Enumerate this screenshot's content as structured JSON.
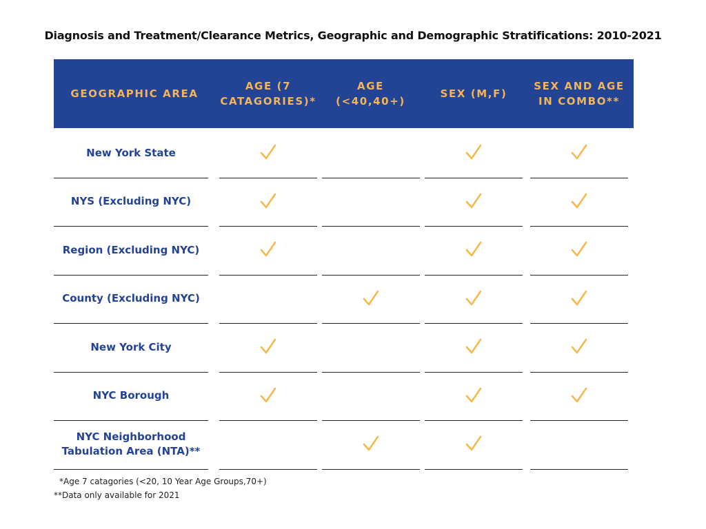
{
  "title": "Diagnosis and Treatment/Clearance Metrics, Geographic and Demographic Stratifications: 2010-2021",
  "headers": [
    "GEOGRAPHIC AREA",
    "AGE (7\nCATAGORIES)*",
    "AGE (<40,40+)",
    "SEX (M,F)",
    "SEX AND AGE\nIN COMBO**"
  ],
  "rows": [
    {
      "label": "New York State",
      "checks": [
        true,
        false,
        true,
        true
      ]
    },
    {
      "label": "NYS (Excluding NYC)",
      "checks": [
        true,
        false,
        true,
        true
      ]
    },
    {
      "label": "Region (Excluding NYC)",
      "checks": [
        true,
        false,
        true,
        true
      ]
    },
    {
      "label": "County (Excluding NYC)",
      "checks": [
        false,
        true,
        true,
        true
      ]
    },
    {
      "label": "New York City",
      "checks": [
        true,
        false,
        true,
        true
      ]
    },
    {
      "label": "NYC Borough",
      "checks": [
        true,
        false,
        true,
        true
      ]
    },
    {
      "label": "NYC Neighborhood\nTabulation Area (NTA)**",
      "checks": [
        false,
        true,
        true,
        false
      ]
    }
  ],
  "footnotes": [
    "*Age 7 catagories (<20, 10 Year Age Groups,70+)",
    "**Data only available for 2021"
  ],
  "check_icon": "checkmark-icon",
  "colors": {
    "header_bg": "#234395",
    "header_text": "#f3b557",
    "label_text": "#234395",
    "check": "#f5b94f"
  }
}
